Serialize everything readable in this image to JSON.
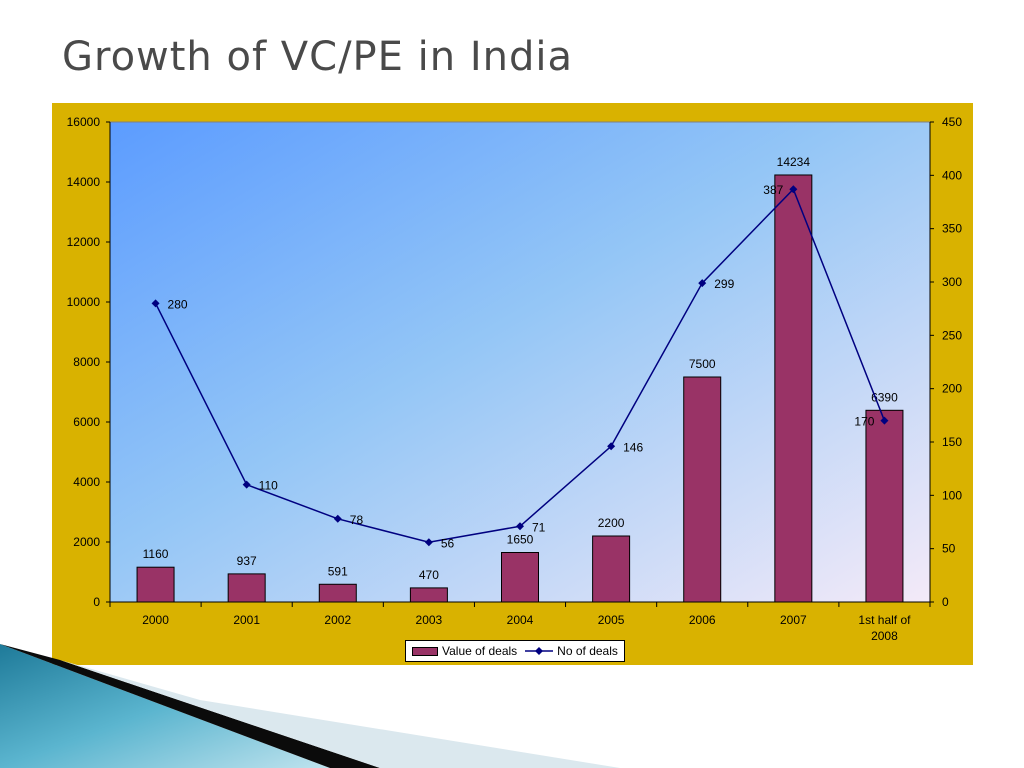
{
  "slide": {
    "title": "Growth of VC/PE in India"
  },
  "colors": {
    "panel": "#d9b200",
    "bar": "#993366",
    "line": "#000080"
  },
  "chart_data": {
    "type": "bar",
    "categories": [
      "2000",
      "2001",
      "2002",
      "2003",
      "2004",
      "2005",
      "2006",
      "2007",
      "1st half of 2008"
    ],
    "series": [
      {
        "name": "Value of deals",
        "type": "bar",
        "axis": "left",
        "values": [
          1160,
          937,
          591,
          470,
          1650,
          2200,
          7500,
          14234,
          6390
        ],
        "labels": [
          "1160",
          "937",
          "591",
          "470",
          "1650",
          "2200",
          "7500",
          "14234",
          "6390"
        ]
      },
      {
        "name": "No of deals",
        "type": "line",
        "axis": "right",
        "values": [
          280,
          110,
          78,
          56,
          71,
          146,
          299,
          387,
          170
        ],
        "labels": [
          "280",
          "110",
          "78",
          "56",
          "71",
          "146",
          "299",
          "387",
          "170"
        ]
      }
    ],
    "y_left": {
      "min": 0,
      "max": 16000,
      "ticks": [
        "0",
        "2000",
        "4000",
        "6000",
        "8000",
        "10000",
        "12000",
        "14000",
        "16000"
      ]
    },
    "y_right": {
      "min": 0,
      "max": 450,
      "ticks": [
        "0",
        "50",
        "100",
        "150",
        "200",
        "250",
        "300",
        "350",
        "400",
        "450"
      ]
    },
    "legend_position": "bottom",
    "grid": false
  }
}
